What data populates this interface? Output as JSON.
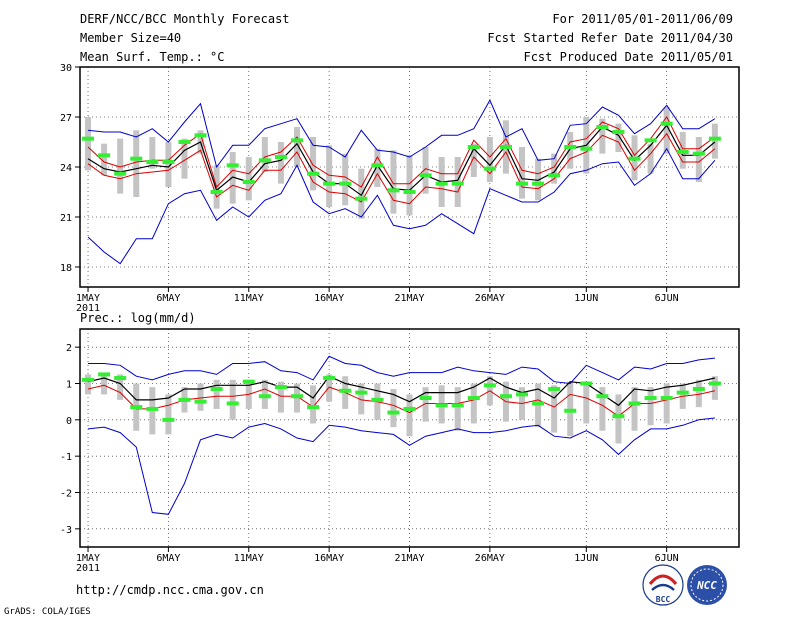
{
  "header": {
    "title": "DERF/NCC/BCC Monthly Forecast",
    "member_size": "Member Size=40",
    "variable": "Mean Surf. Temp.: °C",
    "period": "For 2011/05/01-2011/06/09",
    "started": "Fcst Started Refer Date 2011/04/30",
    "produced": "Fcst Produced Date 2011/05/01"
  },
  "footer": {
    "url": "http://cmdp.ncc.cma.gov.cn",
    "grads": "GrADS: COLA/IGES",
    "logo_bcc": "BCC",
    "logo_ncc": "NCC"
  },
  "colors": {
    "envelope": "#0000cc",
    "spread": "#dd0000",
    "mean": "#000000",
    "median": "#33ee33",
    "box": "#c4c4c4",
    "grid": "#555555"
  },
  "chart_data": [
    {
      "id": "temperature",
      "type": "box-line",
      "title": "Mean Surf. Temp.: °C",
      "ylim": [
        16.8,
        30
      ],
      "yticks": [
        18,
        21,
        24,
        27,
        30
      ],
      "ytick_labels": [
        "18",
        "21",
        "24",
        "27",
        "30"
      ],
      "xticks": [
        1,
        6,
        11,
        16,
        21,
        26,
        32,
        37
      ],
      "xtick_labels": [
        "1MAY",
        "6MAY",
        "11MAY",
        "16MAY",
        "21MAY",
        "26MAY",
        "1JUN",
        "6JUN"
      ],
      "xtick_sublabel": "2011",
      "days": [
        1,
        2,
        3,
        4,
        5,
        6,
        7,
        8,
        9,
        10,
        11,
        12,
        13,
        14,
        15,
        16,
        17,
        18,
        19,
        20,
        21,
        22,
        23,
        24,
        25,
        26,
        27,
        28,
        29,
        30,
        31,
        32,
        33,
        34,
        35,
        36,
        37,
        38,
        39,
        40
      ],
      "series": [
        {
          "name": "max",
          "values": [
            19.8,
            18.9,
            18.2,
            19.7,
            19.7,
            21.8,
            22.4,
            22.6,
            20.8,
            21.6,
            21.0,
            22.0,
            22.4,
            24.1,
            21.9,
            21.2,
            21.5,
            21.0,
            22.3,
            20.5,
            20.3,
            20.5,
            21.2,
            20.6,
            20.0,
            22.7,
            22.3,
            21.9,
            21.9,
            22.5,
            23.6,
            23.8,
            24.2,
            24.3,
            22.9,
            23.6,
            25.1,
            23.3,
            23.3,
            24.4
          ]
        },
        {
          "name": "upper",
          "values": [
            26.2,
            26.1,
            26.1,
            25.8,
            26.3,
            25.5,
            26.7,
            27.8,
            24.0,
            25.3,
            25.3,
            26.3,
            26.6,
            26.9,
            25.3,
            25.2,
            24.6,
            26.2,
            25.0,
            24.9,
            24.6,
            25.2,
            25.9,
            25.9,
            26.3,
            28.0,
            25.8,
            26.3,
            24.4,
            24.5,
            26.5,
            26.6,
            27.6,
            27.1,
            26.0,
            26.6,
            27.7,
            26.3,
            26.3,
            26.9
          ]
        },
        {
          "name": "spread_high",
          "values": [
            25.2,
            24.3,
            24.0,
            24.3,
            24.4,
            24.4,
            25.3,
            26.0,
            22.8,
            23.8,
            23.6,
            24.6,
            24.9,
            25.8,
            24.1,
            23.5,
            23.4,
            22.8,
            24.6,
            23.0,
            23.0,
            23.9,
            23.6,
            23.6,
            25.6,
            24.6,
            25.7,
            23.8,
            23.6,
            24.0,
            25.5,
            25.7,
            26.7,
            26.3,
            24.7,
            25.7,
            27.0,
            25.1,
            25.1,
            25.8
          ]
        },
        {
          "name": "mean",
          "values": [
            24.5,
            23.9,
            23.7,
            23.9,
            24.1,
            24.0,
            25.0,
            25.5,
            22.6,
            23.4,
            23.1,
            24.2,
            24.4,
            25.4,
            23.7,
            23.0,
            23.0,
            22.3,
            24.1,
            22.7,
            22.6,
            23.5,
            23.1,
            23.2,
            25.1,
            24.1,
            25.3,
            23.3,
            23.2,
            23.7,
            25.1,
            25.3,
            26.4,
            25.9,
            24.4,
            25.3,
            26.5,
            24.7,
            24.7,
            25.5
          ]
        },
        {
          "name": "spread_low",
          "values": [
            24.2,
            23.5,
            23.3,
            23.6,
            23.7,
            23.8,
            24.4,
            25.0,
            22.2,
            22.9,
            22.6,
            23.8,
            23.8,
            24.9,
            23.1,
            22.5,
            22.4,
            21.9,
            23.6,
            22.0,
            21.8,
            22.8,
            22.7,
            22.5,
            24.6,
            23.6,
            24.9,
            22.8,
            22.7,
            23.3,
            24.5,
            24.9,
            25.9,
            25.5,
            23.8,
            24.8,
            26.0,
            24.3,
            24.3,
            25.1
          ]
        },
        {
          "name": "median",
          "values": [
            25.7,
            24.7,
            23.6,
            24.5,
            24.3,
            24.3,
            25.5,
            25.9,
            22.5,
            24.1,
            23.1,
            24.4,
            24.6,
            25.6,
            23.6,
            23.0,
            23.0,
            22.1,
            24.1,
            22.6,
            22.5,
            23.5,
            23.0,
            23.0,
            25.2,
            23.9,
            25.2,
            23.0,
            23.0,
            23.5,
            25.2,
            25.1,
            26.4,
            26.1,
            24.5,
            25.6,
            26.6,
            24.9,
            24.8,
            25.7
          ]
        },
        {
          "name": "box_high",
          "values": [
            27.0,
            25.4,
            25.7,
            26.2,
            25.8,
            25.5,
            25.7,
            26.2,
            24.1,
            24.9,
            24.6,
            25.8,
            25.5,
            26.4,
            25.8,
            25.3,
            24.8,
            23.9,
            25.1,
            25.0,
            24.7,
            25.2,
            24.6,
            24.6,
            25.4,
            25.8,
            26.8,
            25.2,
            24.5,
            24.8,
            26.1,
            27.0,
            26.9,
            26.6,
            25.9,
            25.4,
            27.6,
            26.1,
            25.8,
            26.6
          ]
        },
        {
          "name": "box_low",
          "values": [
            23.8,
            23.5,
            22.4,
            22.2,
            23.9,
            22.8,
            23.3,
            24.8,
            21.5,
            21.8,
            22.0,
            23.7,
            23.0,
            24.0,
            22.6,
            21.6,
            21.7,
            20.9,
            22.8,
            21.2,
            21.1,
            22.4,
            21.6,
            21.6,
            23.4,
            23.1,
            23.6,
            22.1,
            22.0,
            23.0,
            23.9,
            23.6,
            24.8,
            24.9,
            23.2,
            23.6,
            24.8,
            23.9,
            23.1,
            24.5
          ]
        }
      ]
    },
    {
      "id": "precipitation",
      "type": "box-line",
      "title": "Prec.: log(mm/d)",
      "ylim": [
        -3.5,
        2.5
      ],
      "yticks": [
        -3,
        -2,
        -1,
        0,
        1,
        2
      ],
      "ytick_labels": [
        "-3",
        "-2",
        "-1",
        "0",
        "1",
        "2"
      ],
      "xticks": [
        1,
        6,
        11,
        16,
        21,
        26,
        32,
        37
      ],
      "xtick_labels": [
        "1MAY",
        "6MAY",
        "11MAY",
        "16MAY",
        "21MAY",
        "26MAY",
        "1JUN",
        "6JUN"
      ],
      "xtick_sublabel": "2011",
      "days": [
        1,
        2,
        3,
        4,
        5,
        6,
        7,
        8,
        9,
        10,
        11,
        12,
        13,
        14,
        15,
        16,
        17,
        18,
        19,
        20,
        21,
        22,
        23,
        24,
        25,
        26,
        27,
        28,
        29,
        30,
        31,
        32,
        33,
        34,
        35,
        36,
        37,
        38,
        39,
        40
      ],
      "series": [
        {
          "name": "max",
          "values": [
            1.55,
            1.55,
            1.5,
            1.2,
            1.1,
            1.25,
            1.35,
            1.35,
            1.25,
            1.55,
            1.55,
            1.6,
            1.35,
            1.3,
            1.1,
            1.75,
            1.55,
            1.5,
            1.3,
            1.2,
            1.3,
            1.3,
            1.3,
            1.45,
            1.35,
            1.3,
            1.25,
            1.45,
            1.4,
            1.05,
            1.0,
            1.5,
            1.3,
            1.1,
            1.45,
            1.4,
            1.55,
            1.55,
            1.65,
            1.7
          ]
        },
        {
          "name": "mean",
          "values": [
            1.05,
            1.15,
            1.0,
            0.55,
            0.55,
            0.6,
            0.85,
            0.85,
            0.95,
            0.95,
            0.95,
            1.05,
            0.9,
            0.9,
            0.6,
            1.2,
            1.0,
            0.9,
            0.8,
            0.7,
            0.5,
            0.75,
            0.75,
            0.75,
            0.9,
            1.15,
            0.9,
            0.75,
            0.85,
            0.6,
            1.05,
            1.0,
            0.7,
            0.4,
            0.85,
            0.8,
            0.9,
            0.95,
            1.05,
            1.15
          ]
        },
        {
          "name": "spread_low",
          "values": [
            0.85,
            0.95,
            0.75,
            0.3,
            0.3,
            0.4,
            0.55,
            0.6,
            0.65,
            0.65,
            0.7,
            0.85,
            0.65,
            0.65,
            0.35,
            0.9,
            0.75,
            0.55,
            0.5,
            0.4,
            0.2,
            0.45,
            0.45,
            0.45,
            0.55,
            0.8,
            0.5,
            0.45,
            0.55,
            0.35,
            0.7,
            0.6,
            0.4,
            0.1,
            0.45,
            0.45,
            0.55,
            0.65,
            0.7,
            0.8
          ]
        },
        {
          "name": "median",
          "values": [
            1.1,
            1.25,
            1.15,
            0.35,
            0.3,
            0.0,
            0.55,
            0.5,
            0.85,
            0.45,
            1.05,
            0.65,
            0.9,
            0.65,
            0.35,
            1.15,
            0.8,
            0.75,
            0.55,
            0.2,
            0.3,
            0.6,
            0.4,
            0.4,
            0.6,
            0.95,
            0.65,
            0.7,
            0.45,
            0.85,
            0.25,
            1.0,
            0.65,
            0.1,
            0.45,
            0.6,
            0.6,
            0.75,
            0.85,
            1.0
          ]
        },
        {
          "name": "min",
          "values": [
            -0.25,
            -0.2,
            -0.35,
            -0.75,
            -2.55,
            -2.6,
            -1.75,
            -0.55,
            -0.4,
            -0.5,
            -0.2,
            -0.1,
            -0.25,
            -0.5,
            -0.6,
            -0.15,
            -0.2,
            -0.3,
            -0.35,
            -0.4,
            -0.7,
            -0.45,
            -0.35,
            -0.25,
            -0.35,
            -0.35,
            -0.3,
            -0.2,
            -0.15,
            -0.45,
            -0.5,
            -0.3,
            -0.55,
            -0.95,
            -0.55,
            -0.25,
            -0.25,
            -0.15,
            0.0,
            0.05
          ]
        },
        {
          "name": "box_high",
          "values": [
            1.25,
            1.3,
            1.25,
            1.0,
            0.9,
            0.7,
            0.9,
            1.0,
            1.1,
            1.1,
            1.1,
            1.1,
            1.05,
            1.0,
            0.95,
            1.25,
            1.2,
            1.0,
            1.0,
            0.85,
            0.7,
            0.9,
            0.95,
            0.9,
            1.0,
            1.2,
            1.05,
            0.9,
            1.0,
            0.95,
            1.05,
            1.0,
            0.9,
            0.7,
            0.9,
            0.9,
            1.0,
            1.0,
            1.1,
            1.2
          ]
        },
        {
          "name": "box_low",
          "values": [
            0.7,
            0.7,
            0.55,
            -0.3,
            -0.4,
            -0.4,
            0.2,
            0.25,
            0.3,
            0.0,
            0.3,
            0.3,
            0.2,
            0.2,
            -0.1,
            0.5,
            0.3,
            0.15,
            0.0,
            -0.2,
            -0.45,
            -0.05,
            -0.1,
            -0.3,
            -0.1,
            0.4,
            -0.05,
            0.0,
            -0.2,
            -0.35,
            -0.45,
            -0.1,
            -0.3,
            -0.65,
            -0.3,
            -0.15,
            -0.1,
            0.3,
            0.35,
            0.55
          ]
        }
      ]
    }
  ]
}
